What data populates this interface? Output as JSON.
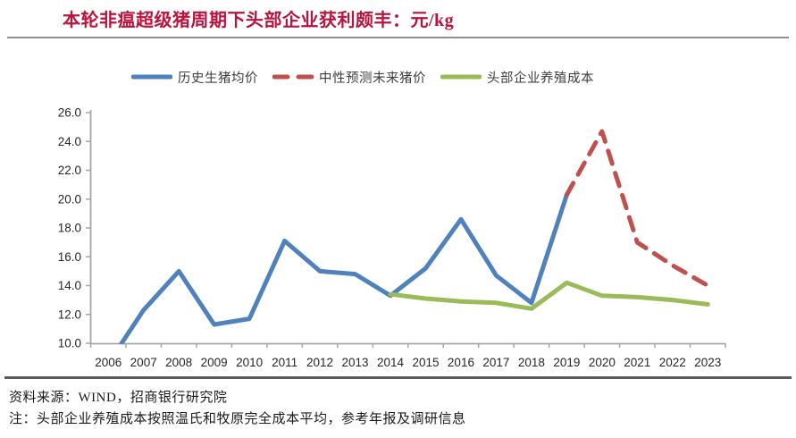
{
  "page": {
    "title": "本轮非瘟超级猪周期下头部企业获利颇丰：元/kg",
    "footer": {
      "source_line": "资料来源：WIND，招商银行研究院",
      "note_line": "注：头部企业养殖成本按照温氏和牧原完全成本平均，参考年报及调研信息"
    },
    "colors": {
      "title": "#BA133E",
      "divider_top": "#909090",
      "divider_bottom": "#5A5A5A",
      "footer_text": "#1A1A1A"
    }
  },
  "chart_data": {
    "type": "line",
    "title": "本轮非瘟超级猪周期下头部企业获利颇丰：元/kg",
    "unit": "元/kg",
    "categories": [
      "2006",
      "2007",
      "2008",
      "2009",
      "2010",
      "2011",
      "2012",
      "2013",
      "2014",
      "2015",
      "2016",
      "2017",
      "2018",
      "2019",
      "2020",
      "2021",
      "2022",
      "2023"
    ],
    "ylim": [
      10,
      26
    ],
    "ytick_step": 2,
    "ytick_labels": [
      "26.0",
      "24.0",
      "22.0",
      "20.0",
      "18.0",
      "16.0",
      "14.0",
      "12.0",
      "10.0"
    ],
    "grid": false,
    "legend_position": "top",
    "axis_color": "#A6A6A6",
    "tick_label_color": "#262626",
    "series": [
      {
        "key": "historical-pig-price",
        "name": "历史生猪均价",
        "color": "#4F81BD",
        "style": "solid",
        "values": [
          8.6,
          12.3,
          15.0,
          11.3,
          11.7,
          17.1,
          15.0,
          14.8,
          13.3,
          15.2,
          18.6,
          14.7,
          12.8,
          20.3,
          null,
          null,
          null,
          null
        ]
      },
      {
        "key": "neutral-forecast-price",
        "name": "中性预测未来猪价",
        "color": "#C0504D",
        "style": "dashed",
        "values": [
          null,
          null,
          null,
          null,
          null,
          null,
          null,
          null,
          null,
          null,
          null,
          null,
          null,
          20.3,
          24.7,
          17.0,
          15.4,
          14.0
        ]
      },
      {
        "key": "leading-firm-breeding-cost",
        "name": "头部企业养殖成本",
        "color": "#9BBB59",
        "style": "solid",
        "values": [
          null,
          null,
          null,
          null,
          null,
          null,
          null,
          null,
          13.4,
          13.1,
          12.9,
          12.8,
          12.4,
          14.2,
          13.3,
          13.2,
          13.0,
          12.7
        ]
      }
    ]
  }
}
